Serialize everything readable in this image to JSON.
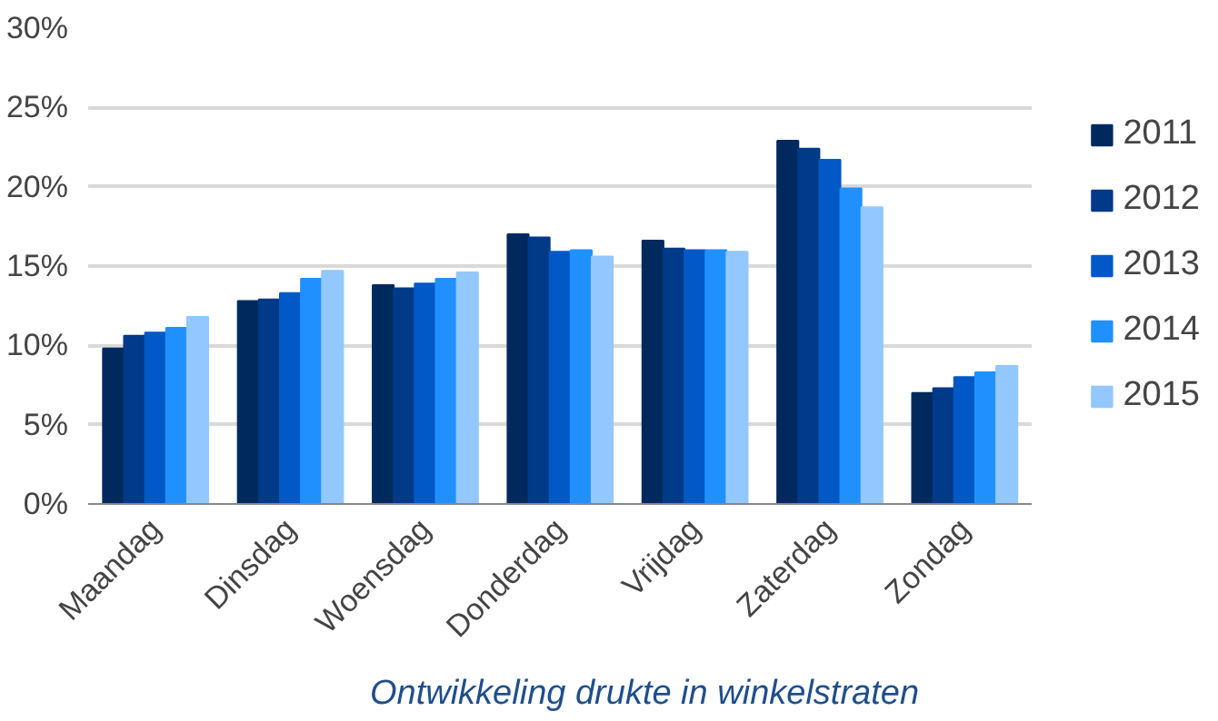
{
  "chart_data": {
    "type": "bar",
    "title": "Ontwikkeling drukte in winkelstraten",
    "categories": [
      "Maandag",
      "Dinsdag",
      "Woensdag",
      "Donderdag",
      "Vrijdag",
      "Zaterdag",
      "Zondag"
    ],
    "series": [
      {
        "name": "2011",
        "color": "#002a5e",
        "values": [
          9.8,
          12.8,
          13.8,
          17.0,
          16.6,
          22.9,
          7.0
        ]
      },
      {
        "name": "2012",
        "color": "#003a88",
        "values": [
          10.6,
          12.9,
          13.6,
          16.8,
          16.1,
          22.4,
          7.3
        ]
      },
      {
        "name": "2013",
        "color": "#0059c6",
        "values": [
          10.8,
          13.3,
          13.9,
          15.9,
          16.0,
          21.7,
          8.0
        ]
      },
      {
        "name": "2014",
        "color": "#2190ff",
        "values": [
          11.1,
          14.2,
          14.2,
          16.0,
          16.0,
          19.9,
          8.3
        ]
      },
      {
        "name": "2015",
        "color": "#92c8ff",
        "values": [
          11.8,
          14.7,
          14.6,
          15.6,
          15.9,
          18.7,
          8.7
        ]
      }
    ],
    "ylim": [
      0,
      30
    ],
    "yticks": [
      {
        "value": 0,
        "label": "0%"
      },
      {
        "value": 5,
        "label": "5%"
      },
      {
        "value": 10,
        "label": "10%"
      },
      {
        "value": 15,
        "label": "15%"
      },
      {
        "value": 20,
        "label": "20%"
      },
      {
        "value": 25,
        "label": "25%"
      },
      {
        "value": 30,
        "label": "30%"
      }
    ],
    "grid": "y",
    "legend": "right"
  }
}
